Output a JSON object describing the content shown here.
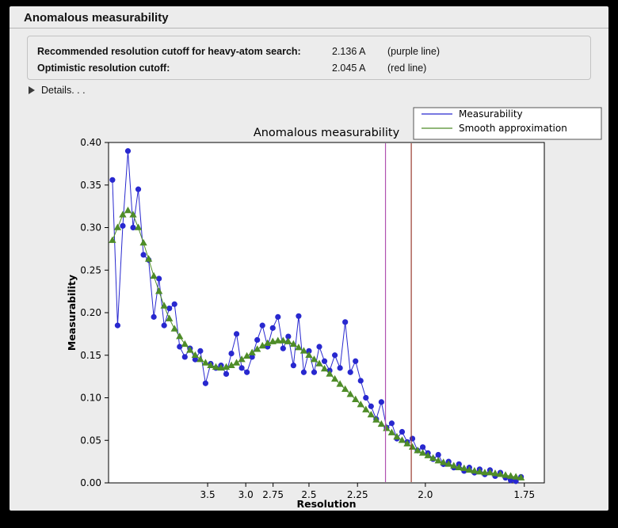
{
  "window": {
    "title": "Anomalous measurability"
  },
  "cutoffs": [
    {
      "label": "Recommended resolution cutoff for heavy-atom search:",
      "value": "2.136 A",
      "note": "(purple line)"
    },
    {
      "label": "Optimistic resolution cutoff:",
      "value": "2.045 A",
      "note": "(red line)"
    }
  ],
  "details": {
    "label": "Details. . ."
  },
  "chart_data": {
    "type": "line",
    "title": "Anomalous measurability",
    "xlabel": "Resolution",
    "ylabel": "Measurability",
    "ylim": [
      0.0,
      0.4
    ],
    "xlim_s": [
      0.005,
      0.342
    ],
    "x_axis_note": "x plotted as 1/d^2; tick labels show resolution d in Angstrom (reversed axis)",
    "grid": false,
    "yticks": [
      0.0,
      0.05,
      0.1,
      0.15,
      0.2,
      0.25,
      0.3,
      0.35,
      0.4
    ],
    "xticks": [
      {
        "label": "3.5",
        "d": 3.5
      },
      {
        "label": "3.0",
        "d": 3.0
      },
      {
        "label": "2.75",
        "d": 2.75
      },
      {
        "label": "2.5",
        "d": 2.5
      },
      {
        "label": "2.25",
        "d": 2.25
      },
      {
        "label": "2.0",
        "d": 2.0
      },
      {
        "label": "1.75",
        "d": 1.75
      }
    ],
    "x_s": [
      0.008,
      0.012,
      0.016,
      0.02,
      0.024,
      0.028,
      0.032,
      0.036,
      0.04,
      0.044,
      0.048,
      0.052,
      0.056,
      0.06,
      0.064,
      0.068,
      0.072,
      0.076,
      0.08,
      0.084,
      0.088,
      0.092,
      0.096,
      0.1,
      0.104,
      0.108,
      0.112,
      0.116,
      0.12,
      0.124,
      0.128,
      0.132,
      0.136,
      0.14,
      0.144,
      0.148,
      0.152,
      0.156,
      0.16,
      0.164,
      0.168,
      0.172,
      0.176,
      0.18,
      0.184,
      0.188,
      0.192,
      0.196,
      0.2,
      0.204,
      0.208,
      0.212,
      0.216,
      0.22,
      0.224,
      0.228,
      0.232,
      0.236,
      0.24,
      0.244,
      0.248,
      0.252,
      0.256,
      0.26,
      0.264,
      0.268,
      0.272,
      0.276,
      0.28,
      0.284,
      0.288,
      0.292,
      0.296,
      0.3,
      0.304,
      0.308,
      0.312,
      0.316,
      0.32,
      0.324
    ],
    "series": [
      {
        "name": "Measurability",
        "color": "#2828cf",
        "marker": "circle",
        "values": [
          0.356,
          0.185,
          0.302,
          0.39,
          0.3,
          0.345,
          0.268,
          0.262,
          0.195,
          0.24,
          0.185,
          0.205,
          0.21,
          0.16,
          0.148,
          0.158,
          0.145,
          0.155,
          0.117,
          0.14,
          0.135,
          0.138,
          0.128,
          0.152,
          0.175,
          0.135,
          0.13,
          0.148,
          0.168,
          0.185,
          0.16,
          0.182,
          0.195,
          0.158,
          0.172,
          0.138,
          0.196,
          0.13,
          0.155,
          0.13,
          0.16,
          0.143,
          0.132,
          0.15,
          0.135,
          0.189,
          0.13,
          0.143,
          0.12,
          0.1,
          0.09,
          0.075,
          0.095,
          0.065,
          0.07,
          0.052,
          0.06,
          0.048,
          0.052,
          0.038,
          0.042,
          0.035,
          0.028,
          0.033,
          0.022,
          0.025,
          0.018,
          0.022,
          0.014,
          0.018,
          0.012,
          0.016,
          0.01,
          0.015,
          0.008,
          0.012,
          0.006,
          0.003,
          0.002,
          0.007
        ]
      },
      {
        "name": "Smooth approximation",
        "color": "#4e8c28",
        "marker": "triangle",
        "values": [
          0.285,
          0.3,
          0.315,
          0.32,
          0.315,
          0.3,
          0.282,
          0.263,
          0.243,
          0.225,
          0.208,
          0.193,
          0.181,
          0.172,
          0.163,
          0.156,
          0.15,
          0.145,
          0.141,
          0.138,
          0.136,
          0.135,
          0.136,
          0.138,
          0.141,
          0.145,
          0.149,
          0.153,
          0.157,
          0.161,
          0.164,
          0.166,
          0.167,
          0.167,
          0.166,
          0.163,
          0.159,
          0.155,
          0.15,
          0.145,
          0.14,
          0.134,
          0.128,
          0.122,
          0.116,
          0.11,
          0.104,
          0.098,
          0.092,
          0.086,
          0.08,
          0.074,
          0.069,
          0.064,
          0.059,
          0.054,
          0.05,
          0.046,
          0.042,
          0.038,
          0.035,
          0.032,
          0.029,
          0.026,
          0.024,
          0.022,
          0.02,
          0.018,
          0.017,
          0.015,
          0.014,
          0.013,
          0.012,
          0.012,
          0.011,
          0.01,
          0.009,
          0.008,
          0.007,
          0.006
        ]
      }
    ],
    "vlines": [
      {
        "label": "purple line",
        "resolution": 2.136,
        "color": "#b052b0"
      },
      {
        "label": "red line",
        "resolution": 2.045,
        "color": "#99392e"
      }
    ],
    "legend": {
      "position": "top-right",
      "entries": [
        "Measurability",
        "Smooth approximation"
      ]
    }
  }
}
